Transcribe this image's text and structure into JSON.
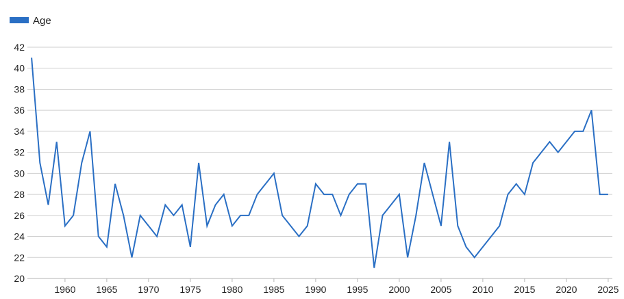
{
  "chart_data": {
    "type": "line",
    "title": "",
    "xlabel": "",
    "ylabel": "",
    "x": [
      1956,
      1957,
      1958,
      1959,
      1960,
      1961,
      1962,
      1963,
      1964,
      1965,
      1966,
      1967,
      1968,
      1969,
      1970,
      1971,
      1972,
      1973,
      1974,
      1975,
      1976,
      1977,
      1978,
      1979,
      1980,
      1981,
      1982,
      1983,
      1984,
      1985,
      1986,
      1987,
      1988,
      1989,
      1990,
      1991,
      1992,
      1993,
      1994,
      1995,
      1996,
      1997,
      1998,
      1999,
      2000,
      2001,
      2002,
      2003,
      2004,
      2005,
      2006,
      2007,
      2008,
      2009,
      2010,
      2011,
      2012,
      2013,
      2014,
      2015,
      2016,
      2017,
      2018,
      2019,
      2020,
      2021,
      2022,
      2023,
      2024,
      2025
    ],
    "series": [
      {
        "name": "Age",
        "color": "#2a6fc4",
        "values": [
          41,
          31,
          27,
          33,
          25,
          26,
          31,
          34,
          24,
          23,
          29,
          26,
          22,
          26,
          25,
          24,
          27,
          26,
          27,
          23,
          31,
          25,
          27,
          28,
          25,
          26,
          26,
          28,
          29,
          30,
          26,
          25,
          24,
          25,
          29,
          28,
          28,
          26,
          28,
          29,
          29,
          21,
          26,
          27,
          28,
          22,
          26,
          31,
          28,
          25,
          33,
          25,
          23,
          22,
          23,
          24,
          25,
          28,
          29,
          28,
          31,
          32,
          33,
          32,
          33,
          34,
          34,
          36,
          28,
          28
        ]
      }
    ],
    "x_ticks": [
      1960,
      1965,
      1970,
      1975,
      1980,
      1985,
      1990,
      1995,
      2000,
      2005,
      2010,
      2015,
      2020,
      2025
    ],
    "y_ticks": [
      20,
      22,
      24,
      26,
      28,
      30,
      32,
      34,
      36,
      38,
      40,
      42
    ],
    "xlim": [
      1955.5,
      2025.5
    ],
    "ylim": [
      20,
      42
    ],
    "grid": "horizontal",
    "legend_position": "top-left"
  }
}
